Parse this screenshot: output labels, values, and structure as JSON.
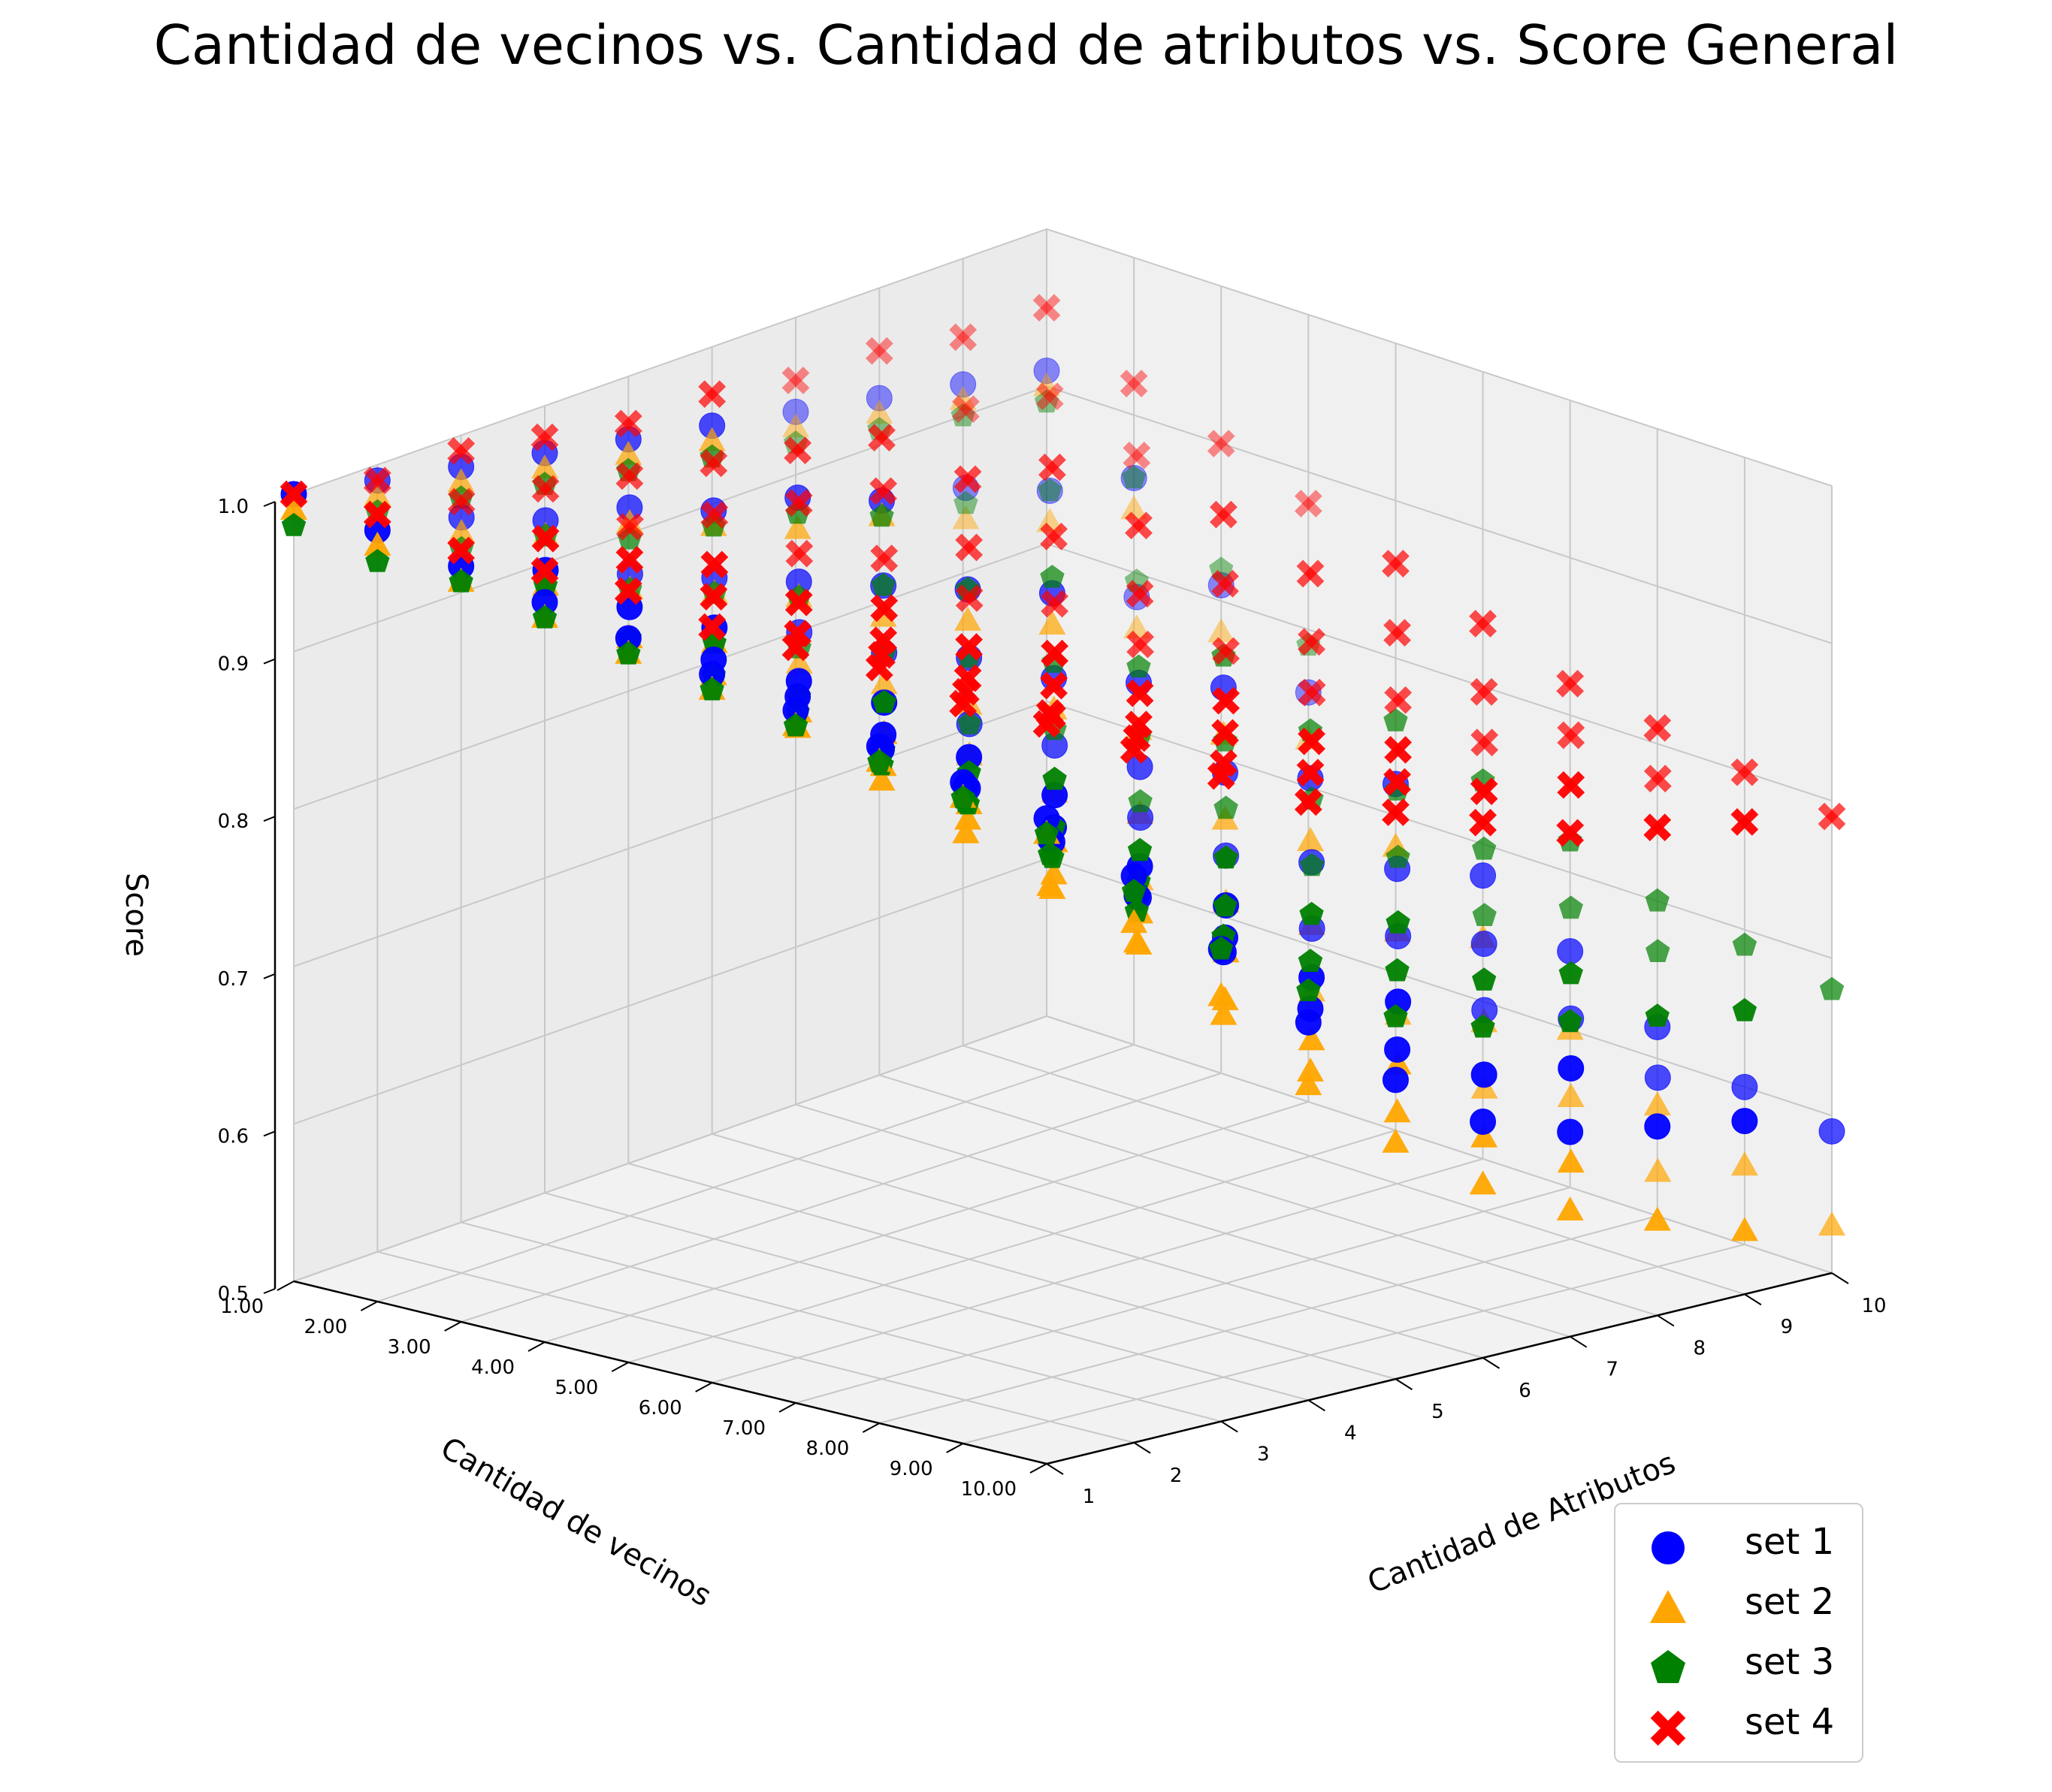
{
  "chart_data": {
    "type": "scatter",
    "title": "Cantidad de vecinos vs. Cantidad de atributos vs. Score General",
    "xlabel": "Cantidad de vecinos",
    "ylabel": "Cantidad de Atributos",
    "zlabel": "Score",
    "x_ticks": [
      "1.00",
      "2.00",
      "3.00",
      "4.00",
      "5.00",
      "6.00",
      "7.00",
      "8.00",
      "9.00",
      "10.00"
    ],
    "y_ticks": [
      "1",
      "2",
      "3",
      "4",
      "5",
      "6",
      "7",
      "8",
      "9",
      "10"
    ],
    "z_ticks": [
      "0.5",
      "0.6",
      "0.7",
      "0.8",
      "0.9",
      "1.0"
    ],
    "xlim": [
      1,
      10
    ],
    "ylim": [
      1,
      10
    ],
    "zlim": [
      0.5,
      1.0
    ],
    "grid": true,
    "legend_position": "bottom-right",
    "x": [
      1,
      2,
      3,
      4,
      5,
      6,
      7,
      8,
      9,
      10
    ],
    "series": [
      {
        "name": "set 1",
        "color": "#0000ff",
        "marker": "circle",
        "values": [
          [
            1.0,
            0.99,
            0.98,
            0.97,
            0.96,
            0.95,
            0.94,
            0.93,
            0.92,
            0.91
          ],
          [
            0.99,
            0.98,
            0.96,
            0.95,
            0.93,
            0.92,
            0.9,
            0.89,
            0.87,
            0.86
          ],
          [
            0.98,
            0.96,
            0.94,
            0.92,
            0.9,
            0.88,
            0.86,
            0.84,
            0.82,
            0.8
          ],
          [
            0.97,
            0.95,
            0.92,
            0.9,
            0.87,
            0.85,
            0.82,
            0.79,
            0.77,
            0.74
          ],
          [
            0.96,
            0.93,
            0.9,
            0.87,
            0.84,
            0.81,
            0.78,
            0.75,
            0.72,
            0.69
          ],
          [
            0.95,
            0.92,
            0.88,
            0.85,
            0.81,
            0.78,
            0.74,
            0.71,
            0.68,
            0.65
          ],
          [
            0.94,
            0.9,
            0.86,
            0.82,
            0.78,
            0.74,
            0.71,
            0.68,
            0.65,
            0.63
          ],
          [
            0.93,
            0.89,
            0.84,
            0.8,
            0.76,
            0.72,
            0.69,
            0.66,
            0.64,
            0.62
          ],
          [
            0.92,
            0.87,
            0.82,
            0.78,
            0.74,
            0.7,
            0.67,
            0.64,
            0.62,
            0.61
          ],
          [
            0.91,
            0.86,
            0.81,
            0.76,
            0.72,
            0.68,
            0.65,
            0.62,
            0.6,
            0.59
          ]
        ]
      },
      {
        "name": "set 2",
        "color": "#ffa500",
        "marker": "triangle",
        "values": [
          [
            0.99,
            0.98,
            0.97,
            0.96,
            0.95,
            0.94,
            0.93,
            0.92,
            0.91,
            0.9
          ],
          [
            0.98,
            0.97,
            0.95,
            0.93,
            0.92,
            0.9,
            0.88,
            0.86,
            0.84,
            0.83
          ],
          [
            0.97,
            0.95,
            0.93,
            0.91,
            0.88,
            0.86,
            0.84,
            0.81,
            0.79,
            0.77
          ],
          [
            0.96,
            0.94,
            0.91,
            0.88,
            0.85,
            0.82,
            0.79,
            0.76,
            0.73,
            0.7
          ],
          [
            0.95,
            0.92,
            0.89,
            0.85,
            0.82,
            0.78,
            0.75,
            0.71,
            0.68,
            0.65
          ],
          [
            0.94,
            0.9,
            0.86,
            0.82,
            0.78,
            0.74,
            0.71,
            0.67,
            0.64,
            0.61
          ],
          [
            0.93,
            0.89,
            0.84,
            0.8,
            0.75,
            0.71,
            0.67,
            0.64,
            0.61,
            0.58
          ],
          [
            0.92,
            0.87,
            0.82,
            0.77,
            0.73,
            0.68,
            0.64,
            0.61,
            0.58,
            0.56
          ],
          [
            0.91,
            0.85,
            0.8,
            0.75,
            0.7,
            0.66,
            0.62,
            0.59,
            0.56,
            0.54
          ],
          [
            0.9,
            0.84,
            0.78,
            0.73,
            0.68,
            0.64,
            0.6,
            0.57,
            0.55,
            0.53
          ]
        ]
      },
      {
        "name": "set 3",
        "color": "#008000",
        "marker": "pentagon",
        "values": [
          [
            0.98,
            0.97,
            0.97,
            0.96,
            0.95,
            0.94,
            0.93,
            0.92,
            0.91,
            0.9
          ],
          [
            0.97,
            0.96,
            0.95,
            0.93,
            0.92,
            0.91,
            0.89,
            0.88,
            0.86,
            0.85
          ],
          [
            0.96,
            0.95,
            0.93,
            0.91,
            0.89,
            0.87,
            0.85,
            0.83,
            0.81,
            0.8
          ],
          [
            0.95,
            0.93,
            0.91,
            0.89,
            0.87,
            0.84,
            0.82,
            0.8,
            0.78,
            0.76
          ],
          [
            0.94,
            0.92,
            0.89,
            0.87,
            0.84,
            0.82,
            0.79,
            0.77,
            0.75,
            0.73
          ],
          [
            0.93,
            0.91,
            0.88,
            0.85,
            0.82,
            0.79,
            0.77,
            0.75,
            0.73,
            0.71
          ],
          [
            0.92,
            0.89,
            0.86,
            0.83,
            0.8,
            0.77,
            0.75,
            0.73,
            0.71,
            0.7
          ],
          [
            0.91,
            0.88,
            0.85,
            0.81,
            0.78,
            0.76,
            0.74,
            0.72,
            0.7,
            0.69
          ],
          [
            0.9,
            0.87,
            0.83,
            0.8,
            0.77,
            0.75,
            0.73,
            0.71,
            0.7,
            0.68
          ],
          [
            0.89,
            0.86,
            0.82,
            0.79,
            0.76,
            0.74,
            0.72,
            0.7,
            0.69,
            0.68
          ]
        ]
      },
      {
        "name": "set 4",
        "color": "#ff0000",
        "marker": "x",
        "values": [
          [
            1.0,
            1.0,
            0.99,
            0.99,
            0.99,
            0.98,
            0.98,
            0.98,
            0.97,
            0.97
          ],
          [
            0.99,
            0.99,
            0.98,
            0.98,
            0.97,
            0.96,
            0.96,
            0.95,
            0.95,
            0.94
          ],
          [
            0.99,
            0.98,
            0.97,
            0.96,
            0.95,
            0.94,
            0.93,
            0.92,
            0.92,
            0.91
          ],
          [
            0.98,
            0.97,
            0.96,
            0.95,
            0.93,
            0.92,
            0.91,
            0.9,
            0.89,
            0.88
          ],
          [
            0.97,
            0.96,
            0.95,
            0.93,
            0.92,
            0.9,
            0.89,
            0.88,
            0.87,
            0.86
          ],
          [
            0.97,
            0.95,
            0.94,
            0.92,
            0.9,
            0.89,
            0.87,
            0.86,
            0.85,
            0.84
          ],
          [
            0.96,
            0.94,
            0.93,
            0.91,
            0.89,
            0.87,
            0.86,
            0.84,
            0.83,
            0.82
          ],
          [
            0.96,
            0.94,
            0.92,
            0.9,
            0.88,
            0.86,
            0.84,
            0.83,
            0.82,
            0.81
          ],
          [
            0.95,
            0.93,
            0.91,
            0.89,
            0.87,
            0.85,
            0.83,
            0.82,
            0.81,
            0.8
          ],
          [
            0.95,
            0.92,
            0.9,
            0.88,
            0.86,
            0.84,
            0.82,
            0.81,
            0.8,
            0.79
          ]
        ]
      }
    ]
  }
}
